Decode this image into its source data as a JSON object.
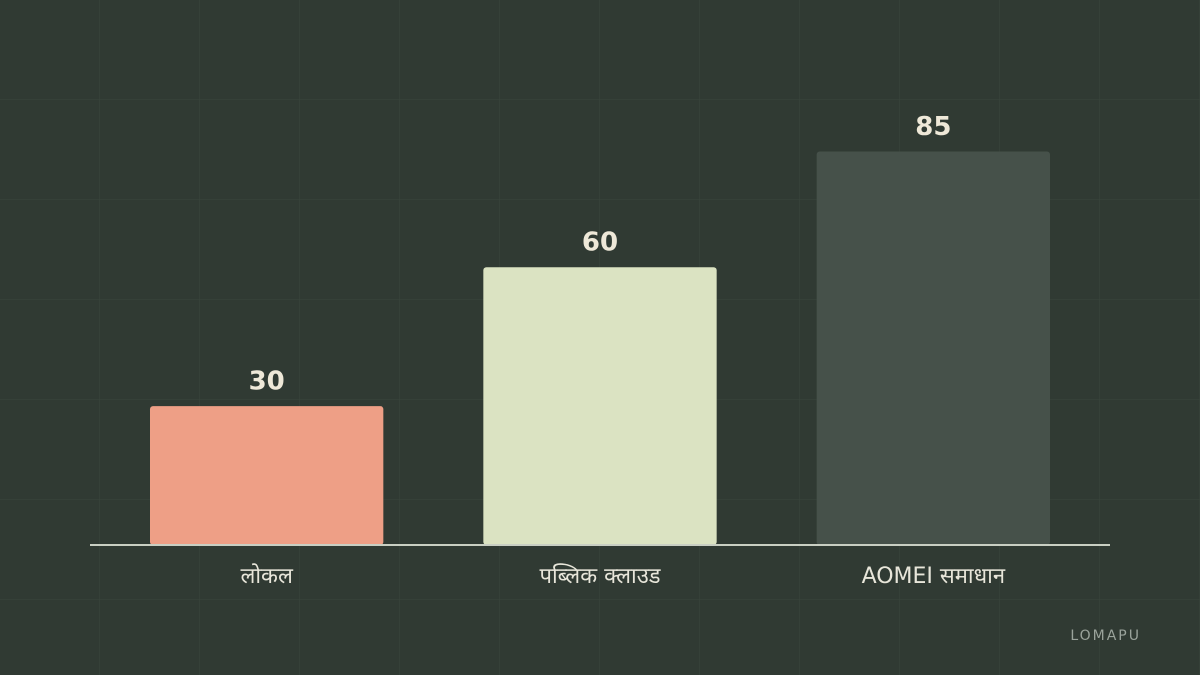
{
  "chart_data": {
    "type": "bar",
    "categories": [
      "लोकल",
      "पब्लिक क्लाउड",
      "AOMEI समाधान"
    ],
    "series": [
      {
        "values": [
          30,
          60,
          85
        ],
        "colors": [
          "#ee9f86",
          "#dbe3c2",
          "#46514a"
        ]
      }
    ],
    "ylim": [
      0,
      100
    ],
    "watermark": "LOMAPU"
  }
}
